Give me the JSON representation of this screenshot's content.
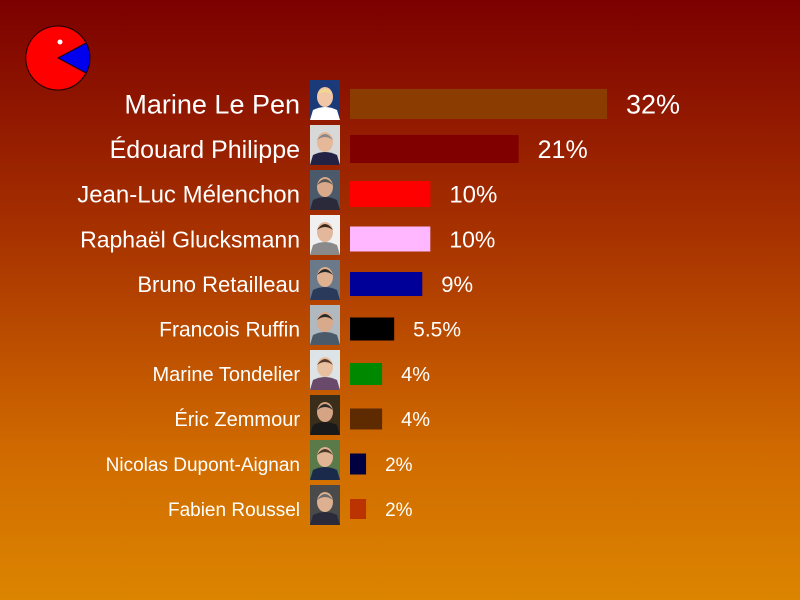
{
  "chart_data": {
    "type": "bar",
    "orientation": "horizontal",
    "categories": [
      "Marine Le Pen",
      "Édouard Philippe",
      "Jean-Luc Mélenchon",
      "Raphaël Glucksmann",
      "Bruno Retailleau",
      "Francois Ruffin",
      "Marine Tondelier",
      "Éric Zemmour",
      "Nicolas Dupont-Aignan",
      "Fabien Roussel"
    ],
    "values": [
      32,
      21,
      10,
      10,
      9,
      5.5,
      4,
      4,
      2,
      2
    ],
    "value_labels": [
      "32%",
      "21%",
      "10%",
      "10%",
      "9%",
      "5.5%",
      "4%",
      "4%",
      "2%",
      "2%"
    ],
    "bar_colors": [
      "#8b3c00",
      "#800000",
      "#ff0000",
      "#ffb8ff",
      "#000099",
      "#000000",
      "#008800",
      "#5e2a00",
      "#000040",
      "#bb3300"
    ],
    "unit": "%",
    "xlim": [
      0,
      32
    ],
    "grid": false,
    "legend": "none"
  },
  "logo": {
    "name": "pie-logo-icon",
    "colors": [
      "#ff0000",
      "#0000ff"
    ]
  },
  "portrait_icons": [
    "portrait-le-pen-icon",
    "portrait-philippe-icon",
    "portrait-melenchon-icon",
    "portrait-glucksmann-icon",
    "portrait-retailleau-icon",
    "portrait-ruffin-icon",
    "portrait-tondelier-icon",
    "portrait-zemmour-icon",
    "portrait-dupont-aignan-icon",
    "portrait-roussel-icon"
  ]
}
